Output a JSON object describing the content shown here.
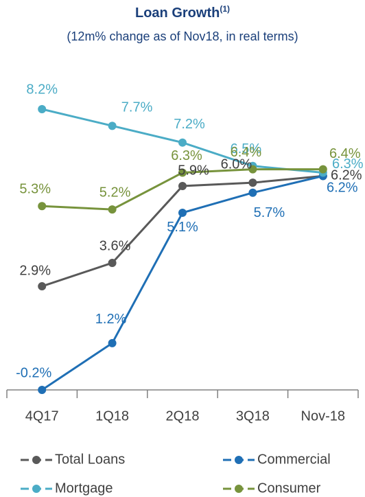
{
  "chart_data": {
    "type": "line",
    "title": "Loan Growth",
    "title_note": "(1)",
    "subtitle": "(12m% change as of Nov18, in real terms)",
    "categories": [
      "4Q17",
      "1Q18",
      "2Q18",
      "3Q18",
      "Nov-18"
    ],
    "ylim": [
      -0.2,
      8.2
    ],
    "series": [
      {
        "name": "Total Loans",
        "color": "#595959",
        "values": [
          2.9,
          3.6,
          5.9,
          6.0,
          6.2
        ],
        "value_labels": [
          "2.9%",
          "3.6%",
          "5.9%",
          "6.0%",
          "6.2%"
        ]
      },
      {
        "name": "Commercial",
        "color": "#1f6fb5",
        "values": [
          -0.2,
          1.2,
          5.1,
          5.7,
          6.2
        ],
        "value_labels": [
          "-0.2%",
          "1.2%",
          "5.1%",
          "5.7%",
          "6.2%"
        ]
      },
      {
        "name": "Mortgage",
        "color": "#4bacc6",
        "values": [
          8.2,
          7.7,
          7.2,
          6.5,
          6.3
        ],
        "value_labels": [
          "8.2%",
          "7.7%",
          "7.2%",
          "6.5%",
          "6.3%"
        ]
      },
      {
        "name": "Consumer",
        "color": "#77933c",
        "values": [
          5.3,
          5.2,
          6.3,
          6.4,
          6.4
        ],
        "value_labels": [
          "5.3%",
          "5.2%",
          "6.3%",
          "6.4%",
          "6.4%"
        ]
      }
    ]
  }
}
